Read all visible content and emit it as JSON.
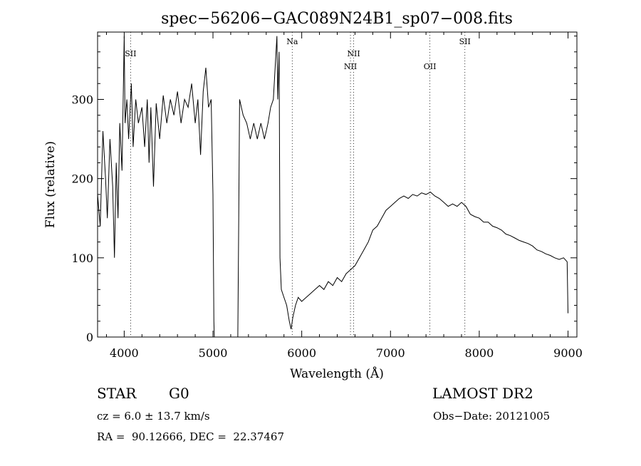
{
  "chart_data": {
    "type": "line",
    "title": "spec−56206−GAC089N24B1_sp07−008.fits",
    "xlabel": "Wavelength (Å)",
    "ylabel": "Flux (relative)",
    "xlim": [
      3700,
      9100
    ],
    "ylim": [
      0,
      385
    ],
    "x_ticks": [
      4000,
      5000,
      6000,
      7000,
      8000,
      9000
    ],
    "y_ticks": [
      0,
      100,
      200,
      300
    ],
    "grid": false,
    "series": [
      {
        "segments": [
          [
            [
              3700,
              180
            ],
            [
              3730,
              140
            ],
            [
              3760,
              260
            ],
            [
              3790,
              200
            ],
            [
              3810,
              150
            ],
            [
              3840,
              250
            ],
            [
              3870,
              190
            ],
            [
              3890,
              100
            ],
            [
              3910,
              220
            ],
            [
              3930,
              150
            ],
            [
              3950,
              270
            ],
            [
              3975,
              210
            ],
            [
              4000,
              380
            ],
            [
              4010,
              270
            ],
            [
              4030,
              300
            ],
            [
              4050,
              250
            ],
            [
              4080,
              320
            ],
            [
              4100,
              240
            ],
            [
              4130,
              300
            ],
            [
              4160,
              270
            ],
            [
              4200,
              290
            ],
            [
              4230,
              240
            ],
            [
              4260,
              300
            ],
            [
              4280,
              220
            ],
            [
              4300,
              290
            ],
            [
              4330,
              190
            ],
            [
              4360,
              295
            ],
            [
              4400,
              250
            ],
            [
              4440,
              305
            ],
            [
              4480,
              270
            ],
            [
              4520,
              300
            ],
            [
              4560,
              280
            ],
            [
              4600,
              310
            ],
            [
              4640,
              270
            ],
            [
              4680,
              300
            ],
            [
              4720,
              290
            ],
            [
              4760,
              320
            ],
            [
              4800,
              270
            ],
            [
              4830,
              300
            ],
            [
              4860,
              230
            ],
            [
              4890,
              310
            ],
            [
              4920,
              340
            ],
            [
              4950,
              290
            ],
            [
              4980,
              300
            ],
            [
              5000,
              180
            ],
            [
              5010,
              20
            ],
            [
              5015,
              0
            ]
          ],
          [
            [
              5280,
              0
            ],
            [
              5290,
              150
            ],
            [
              5300,
              300
            ],
            [
              5340,
              280
            ],
            [
              5380,
              270
            ],
            [
              5420,
              250
            ],
            [
              5460,
              270
            ],
            [
              5500,
              250
            ],
            [
              5540,
              270
            ],
            [
              5580,
              250
            ],
            [
              5620,
              270
            ],
            [
              5650,
              290
            ],
            [
              5680,
              300
            ],
            [
              5700,
              340
            ],
            [
              5720,
              380
            ],
            [
              5730,
              300
            ],
            [
              5745,
              360
            ],
            [
              5755,
              100
            ],
            [
              5770,
              60
            ],
            [
              5800,
              50
            ],
            [
              5830,
              40
            ],
            [
              5860,
              20
            ],
            [
              5880,
              10
            ],
            [
              5900,
              25
            ],
            [
              5930,
              40
            ],
            [
              5960,
              50
            ],
            [
              6000,
              45
            ],
            [
              6050,
              50
            ],
            [
              6100,
              55
            ],
            [
              6150,
              60
            ],
            [
              6200,
              65
            ],
            [
              6250,
              60
            ],
            [
              6300,
              70
            ],
            [
              6350,
              65
            ],
            [
              6400,
              75
            ],
            [
              6450,
              70
            ],
            [
              6500,
              80
            ],
            [
              6550,
              85
            ],
            [
              6600,
              90
            ],
            [
              6650,
              100
            ],
            [
              6700,
              110
            ],
            [
              6750,
              120
            ],
            [
              6800,
              135
            ],
            [
              6850,
              140
            ],
            [
              6900,
              150
            ],
            [
              6950,
              160
            ],
            [
              7000,
              165
            ],
            [
              7050,
              170
            ],
            [
              7100,
              175
            ],
            [
              7150,
              178
            ],
            [
              7200,
              175
            ],
            [
              7250,
              180
            ],
            [
              7300,
              178
            ],
            [
              7350,
              182
            ],
            [
              7400,
              180
            ],
            [
              7450,
              183
            ],
            [
              7500,
              178
            ],
            [
              7550,
              175
            ],
            [
              7600,
              170
            ],
            [
              7650,
              165
            ],
            [
              7700,
              168
            ],
            [
              7750,
              165
            ],
            [
              7800,
              170
            ],
            [
              7850,
              165
            ],
            [
              7900,
              155
            ],
            [
              7950,
              152
            ],
            [
              8000,
              150
            ],
            [
              8050,
              145
            ],
            [
              8100,
              145
            ],
            [
              8150,
              140
            ],
            [
              8200,
              138
            ],
            [
              8250,
              135
            ],
            [
              8300,
              130
            ],
            [
              8350,
              128
            ],
            [
              8400,
              125
            ],
            [
              8450,
              122
            ],
            [
              8500,
              120
            ],
            [
              8550,
              118
            ],
            [
              8600,
              115
            ],
            [
              8650,
              110
            ],
            [
              8700,
              108
            ],
            [
              8750,
              105
            ],
            [
              8800,
              103
            ],
            [
              8850,
              100
            ],
            [
              8900,
              98
            ],
            [
              8950,
              100
            ],
            [
              8990,
              95
            ],
            [
              9000,
              30
            ]
          ]
        ]
      }
    ],
    "lines": [
      {
        "label": "SII",
        "wavelength": 4072,
        "label_row": 1
      },
      {
        "label": "Na",
        "wavelength": 5893,
        "label_row": 0
      },
      {
        "label": "NII",
        "wavelength": 6549,
        "label_row": 2
      },
      {
        "label": "NII",
        "wavelength": 6585,
        "label_row": 1
      },
      {
        "label": "OII",
        "wavelength": 7444,
        "label_row": 2
      },
      {
        "label": "SII",
        "wavelength": 7838,
        "label_row": 0
      }
    ]
  },
  "info": {
    "object_class": "STAR",
    "subclass": "G0",
    "survey": "LAMOST DR2",
    "redshift": "cz = 6.0 ± 13.7 km/s",
    "obs_date": "Obs−Date: 20121005",
    "coords": "RA =  90.12666, DEC =  22.37467"
  }
}
